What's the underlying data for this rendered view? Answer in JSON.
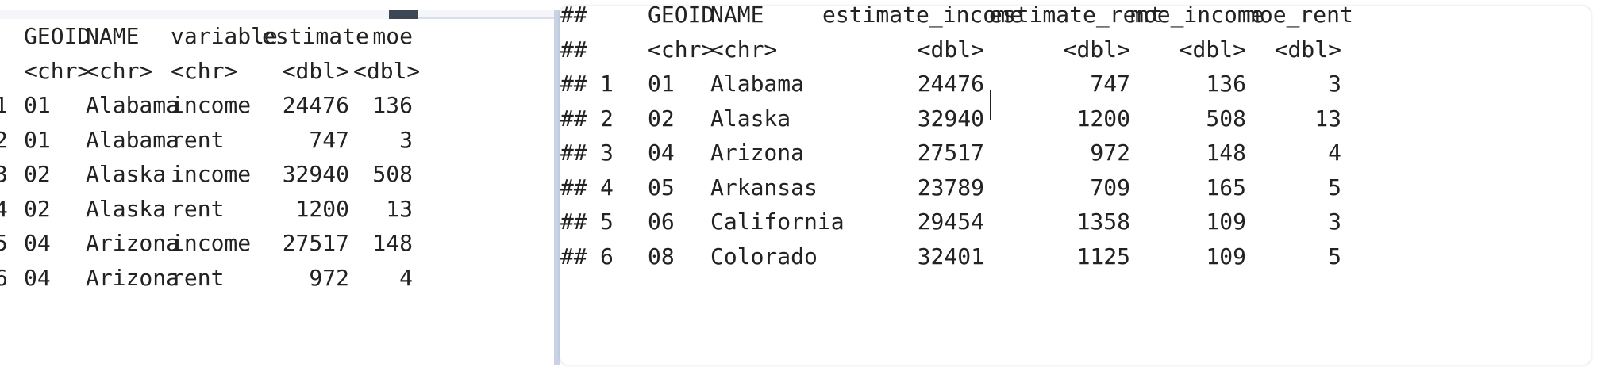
{
  "left_table": {
    "header": [
      "GEOID",
      "NAME",
      "variable",
      "estimate",
      "moe"
    ],
    "types": [
      "<chr>",
      "<chr>",
      "<chr>",
      "<dbl>",
      "<dbl>"
    ],
    "rows": [
      {
        "idx": "1",
        "geoid": "01",
        "name": "Alabama",
        "variable": "income",
        "estimate": "24476",
        "moe": "136"
      },
      {
        "idx": "2",
        "geoid": "01",
        "name": "Alabama",
        "variable": "rent",
        "estimate": "747",
        "moe": "3"
      },
      {
        "idx": "3",
        "geoid": "02",
        "name": "Alaska",
        "variable": "income",
        "estimate": "32940",
        "moe": "508"
      },
      {
        "idx": "4",
        "geoid": "02",
        "name": "Alaska",
        "variable": "rent",
        "estimate": "1200",
        "moe": "13"
      },
      {
        "idx": "5",
        "geoid": "04",
        "name": "Arizona",
        "variable": "income",
        "estimate": "27517",
        "moe": "148"
      },
      {
        "idx": "6",
        "geoid": "04",
        "name": "Arizona",
        "variable": "rent",
        "estimate": "972",
        "moe": "4"
      }
    ]
  },
  "right_table": {
    "prefix": "##",
    "header": [
      "GEOID",
      "NAME",
      "estimate_income",
      "estimate_rent",
      "moe_income",
      "moe_rent"
    ],
    "types": [
      "<chr>",
      "<chr>",
      "<dbl>",
      "<dbl>",
      "<dbl>",
      "<dbl>"
    ],
    "rows": [
      {
        "idx": "1",
        "geoid": "01",
        "name": "Alabama",
        "estimate_income": "24476",
        "estimate_rent": "747",
        "moe_income": "136",
        "moe_rent": "3"
      },
      {
        "idx": "2",
        "geoid": "02",
        "name": "Alaska",
        "estimate_income": "32940",
        "estimate_rent": "1200",
        "moe_income": "508",
        "moe_rent": "13"
      },
      {
        "idx": "3",
        "geoid": "04",
        "name": "Arizona",
        "estimate_income": "27517",
        "estimate_rent": "972",
        "moe_income": "148",
        "moe_rent": "4"
      },
      {
        "idx": "4",
        "geoid": "05",
        "name": "Arkansas",
        "estimate_income": "23789",
        "estimate_rent": "709",
        "moe_income": "165",
        "moe_rent": "5"
      },
      {
        "idx": "5",
        "geoid": "06",
        "name": "California",
        "estimate_income": "29454",
        "estimate_rent": "1358",
        "moe_income": "109",
        "moe_rent": "3"
      },
      {
        "idx": "6",
        "geoid": "08",
        "name": "Colorado",
        "estimate_income": "32401",
        "estimate_rent": "1125",
        "moe_income": "109",
        "moe_rent": "5"
      }
    ]
  }
}
